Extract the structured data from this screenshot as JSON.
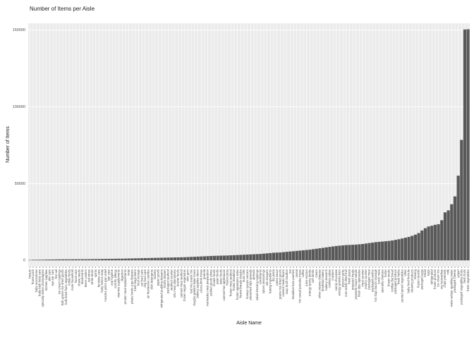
{
  "chart_data": {
    "type": "bar",
    "title": "Number of Items per Aisle",
    "x_label": "Aisle Name",
    "y_label": "Number of Items",
    "categories": [
      "beauty",
      "frozen juice",
      "baby accessories",
      "baby bath body care",
      "specialty wines champagnes",
      "kitchen supplies",
      "skin care",
      "eye ear care",
      "first aid",
      "ice cream toppings",
      "bulk grains rice dried goods",
      "bulk dried fruits vegetables",
      "indian foods",
      "more household",
      "facial care",
      "shave needs",
      "deodorants",
      "beers coolers",
      "red wines",
      "white wines",
      "spirits",
      "feminine care",
      "body lotions soap",
      "muscles joints pain relief",
      "hair care",
      "oral hygiene",
      "cold flu allergy",
      "vitamins supplements",
      "digestion",
      "protein meal replacements",
      "soap",
      "plates bowls cups flatware",
      "trash bags liners",
      "food storage",
      "cat food care",
      "dog food care",
      "air fresheners candles",
      "dish detergents",
      "laundry",
      "paper goods",
      "refrigerated pudding desserts",
      "frozen dessert",
      "packaged seafood",
      "seafood counter",
      "tofu meat alternatives",
      "kosher foods",
      "canned meat seafood",
      "frozen vegan vegetarian",
      "mint gum",
      "trail mix snack mix",
      "doughs gelatins bake mixes",
      "baking supplies decor",
      "cocoa drink mixes",
      "granola",
      "marinades meat preparation",
      "pickled goods olives",
      "instant foods",
      "asian foods",
      "latino foods",
      "canned fruit applesauce",
      "frozen pizza",
      "frozen meat seafood",
      "frozen breakfast",
      "frozen appetizers sides",
      "frozen breads doughs",
      "buns rolls",
      "honeys syrups nectars",
      "preserved dips spreads",
      "spreads",
      "salad dressing toppings",
      "condiments",
      "spices seasonings",
      "oils vinegars",
      "baking ingredients",
      "dry pasta",
      "pasta sauce",
      "grains rice dried goods",
      "canned meals beans",
      "soup broth bouillon",
      "tea",
      "breakfast bars pastries",
      "cereal",
      "hot cereal pancake mixes",
      "coffee",
      "juice nectars",
      "energy sports drinks",
      "soft drinks",
      "cream",
      "other creams cheeses",
      "breakfast bakery",
      "bakery desserts",
      "cookies cakes",
      "crackers",
      "candy chocolate",
      "energy granola bars",
      "popcorn jerky",
      "nuts seeds dried fruit",
      "fresh pasta",
      "prepared meals",
      "prepared soups salads",
      "fresh dips tapenades",
      "meat counter",
      "poultry counter",
      "packaged meat",
      "packaged poultry",
      "hot dogs bacon sausage",
      "lunch meat",
      "specialty cheeses",
      "butter",
      "frozen meals",
      "tortillas flat bread",
      "packaged produce",
      "fresh herbs",
      "canned jarred vegetables",
      "other",
      "baby food formula",
      "cleaning products",
      "missing",
      "frozen snacks",
      "packaged eggs",
      "bread",
      "eggs",
      "refrigerated",
      "frozen produce",
      "ice cream ice",
      "soy lactosefree",
      "chips pretzels",
      "milk",
      "water seltzer sparkling water",
      "packaged cheese",
      "yogurt",
      "packaged vegetables fruits",
      "fresh fruits",
      "fresh vegetables"
    ],
    "values": [
      280,
      400,
      420,
      460,
      480,
      560,
      600,
      620,
      660,
      700,
      710,
      720,
      730,
      740,
      760,
      770,
      780,
      800,
      820,
      850,
      880,
      900,
      950,
      1000,
      1020,
      1050,
      1100,
      1130,
      1150,
      1200,
      1250,
      1300,
      1350,
      1400,
      1450,
      1500,
      1550,
      1600,
      1650,
      1700,
      1750,
      1800,
      1850,
      1900,
      1950,
      2000,
      2050,
      2100,
      2200,
      2300,
      2400,
      2500,
      2600,
      2700,
      2800,
      2900,
      3000,
      3050,
      3100,
      3150,
      3200,
      3300,
      3400,
      3500,
      3600,
      3700,
      3800,
      3900,
      4000,
      4100,
      4200,
      4400,
      4600,
      4800,
      5000,
      5100,
      5200,
      5400,
      5600,
      5800,
      6000,
      6200,
      6400,
      6600,
      6800,
      7000,
      7300,
      7600,
      7900,
      8200,
      8500,
      8800,
      9100,
      9400,
      9600,
      9800,
      10000,
      10100,
      10200,
      10300,
      10500,
      10700,
      11000,
      11300,
      11600,
      11900,
      12100,
      12300,
      12500,
      12700,
      13000,
      13400,
      13800,
      14300,
      14800,
      15300,
      16000,
      16800,
      17800,
      19500,
      21000,
      22100,
      22600,
      23200,
      23600,
      26200,
      31300,
      32600,
      36600,
      41700,
      55200,
      78500,
      150473,
      150609
    ],
    "color": "#595959",
    "ylim": [
      -4000,
      154500
    ],
    "yticks": [
      0,
      50000,
      100000,
      150000
    ],
    "grid": true
  }
}
